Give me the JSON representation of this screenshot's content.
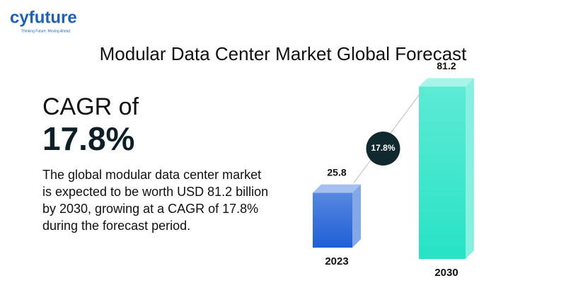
{
  "logo": {
    "name": "cyfuture",
    "tagline": "Thinking Future. Moving Ahead."
  },
  "headline": "CAGR of",
  "highlight": "17.8%",
  "description": [
    "The global modular data center market",
    "is expected to be worth USD 81.2 billion",
    "by 2030, growing at a CAGR of 17.8%",
    "during the forecast period."
  ],
  "chart_data": {
    "type": "bar",
    "title": "Modular Data Center Market Global Forecast",
    "categories": [
      "2023",
      "2030"
    ],
    "values": [
      25.8,
      81.2
    ],
    "colors": [
      "#1f5fd6",
      "#27e3c6"
    ],
    "annotation": "17.8%"
  }
}
